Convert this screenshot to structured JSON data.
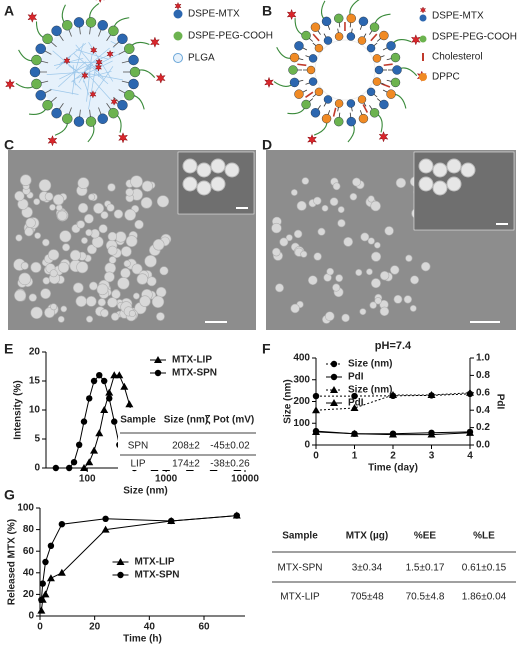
{
  "panel_labels": [
    "A",
    "B",
    "C",
    "D",
    "E",
    "F",
    "G"
  ],
  "schematic_a": {
    "legend": [
      "DSPE-MTX",
      "DSPE-PEG-COOH",
      "PLGA"
    ]
  },
  "schematic_b": {
    "legend": [
      "DSPE-MTX",
      "DSPE-PEG-COOH",
      "Cholesterol",
      "DPPC"
    ]
  },
  "chart_data": [
    {
      "type": "line",
      "xlabel": "Size (nm)",
      "ylabel": "Intensity (%)",
      "xlog": true,
      "xlim": [
        30,
        10000
      ],
      "xticks": [
        100,
        1000,
        10000
      ],
      "ylim": [
        0,
        20
      ],
      "yticks": [
        0,
        5,
        10,
        15,
        20
      ],
      "legend": "upper right",
      "series": [
        {
          "name": "MTX-LIP",
          "marker": "triangle",
          "color": "#000000",
          "x": [
            91,
            106,
            122,
            142,
            164,
            190,
            220,
            255,
            295,
            342,
            396,
            459,
            531,
            615,
            712,
            1000,
            2000,
            4000,
            8000
          ],
          "values": [
            0,
            1,
            3,
            6,
            10,
            13,
            16,
            16,
            14,
            11,
            7,
            4,
            2,
            0.5,
            0,
            0,
            0,
            0,
            0
          ]
        },
        {
          "name": "MTX-SPN",
          "marker": "circle",
          "color": "#000000",
          "x": [
            40,
            59,
            68,
            79,
            91,
            106,
            122,
            142,
            164,
            190,
            220,
            255,
            295,
            342,
            396
          ],
          "values": [
            0,
            0,
            1,
            4,
            8,
            12,
            15,
            16,
            15,
            12,
            8,
            4,
            2,
            0.5,
            0
          ]
        }
      ],
      "table": {
        "header": [
          "Sample",
          "Size (nm)",
          "ζ Pot (mV)"
        ],
        "rows": [
          [
            "SPN",
            "208±2",
            "-45±0.02"
          ],
          [
            "LIP",
            "174±2",
            "-38±0.26"
          ]
        ]
      }
    },
    {
      "type": "line",
      "title": "pH=7.4",
      "xlabel": "Time (day)",
      "ylabel": "Size (nm)",
      "y2label": "PdI",
      "x": [
        0,
        1,
        2,
        3,
        4
      ],
      "xlim": [
        0,
        4
      ],
      "xticks": [
        0,
        1,
        2,
        3,
        4
      ],
      "ylim": [
        0,
        400
      ],
      "yticks": [
        0,
        100,
        200,
        300,
        400
      ],
      "y2lim": [
        0,
        1
      ],
      "y2ticks": [
        {
          "value": 0,
          "label": "0.0"
        },
        {
          "value": 0.2,
          "label": "0.2"
        },
        {
          "value": 0.4,
          "label": "0.4"
        },
        {
          "value": 0.6,
          "label": "0.6"
        },
        {
          "value": 0.8,
          "label": "0.8"
        },
        {
          "value": 1,
          "label": "1.0"
        }
      ],
      "legend": "upper left",
      "series": [
        {
          "name": "Size (nm)",
          "marker": "circle",
          "color": "#000000",
          "dash": true,
          "values": [
            225,
            225,
            226,
            228,
            235
          ]
        },
        {
          "name": "PdI",
          "marker": "circle",
          "color": "#000000",
          "axis": "y2",
          "values": [
            0.16,
            0.13,
            0.13,
            0.14,
            0.15
          ]
        },
        {
          "name": "Size (nm)",
          "marker": "triangle",
          "color": "#000000",
          "dash": true,
          "values": [
            160,
            170,
            230,
            230,
            240
          ]
        },
        {
          "name": "PdI",
          "marker": "triangle",
          "color": "#000000",
          "axis": "y2",
          "values": [
            0.15,
            0.13,
            0.12,
            0.12,
            0.14
          ]
        }
      ]
    },
    {
      "type": "line",
      "xlabel": "Time (h)",
      "ylabel": "Released MTX (%)",
      "xlim": [
        0,
        75
      ],
      "xticks": [
        0,
        20,
        40,
        60
      ],
      "ylim": [
        0,
        100
      ],
      "yticks": [
        0,
        20,
        40,
        60,
        80,
        100
      ],
      "legend": "center",
      "series": [
        {
          "name": "MTX-LIP",
          "marker": "triangle",
          "color": "#000000",
          "x": [
            0.5,
            1,
            2,
            4,
            8,
            24,
            48,
            72
          ],
          "values": [
            5,
            15,
            20,
            35,
            40,
            80,
            88,
            93
          ]
        },
        {
          "name": "MTX-SPN",
          "marker": "circle",
          "color": "#000000",
          "x": [
            0.5,
            1,
            2,
            4,
            8,
            24,
            48,
            72
          ],
          "values": [
            15,
            30,
            50,
            65,
            85,
            90,
            88,
            93
          ]
        }
      ]
    }
  ],
  "table": {
    "header": [
      "Sample",
      "MTX (µg)",
      "%EE",
      "%LE"
    ],
    "rows": [
      [
        "MTX-SPN",
        "3±0.34",
        "1.5±0.17",
        "0.61±0.15"
      ],
      [
        "MTX-LIP",
        "705±48",
        "70.5±4.8",
        "1.86±0.04"
      ]
    ]
  }
}
